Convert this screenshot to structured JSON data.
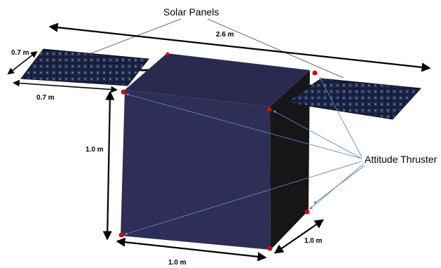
{
  "labels": {
    "solar_panels": "Solar Panels",
    "attitude_thruster": "Attitude Thruster"
  },
  "dimensions": {
    "span": "2.6 m",
    "panel_depth": "0.7 m",
    "panel_width": "0.7 m",
    "body_height": "1.0 m",
    "body_width": "1.0 m",
    "body_depth": "1.0 m"
  },
  "colors": {
    "body_front": "#2e2e57",
    "body_side": "#161616",
    "body_top": "#3b3b68",
    "panel": "#141a33",
    "panel_cell": "#4a5a86",
    "leader_line": "#5b87c4",
    "thruster": "#c41010"
  }
}
